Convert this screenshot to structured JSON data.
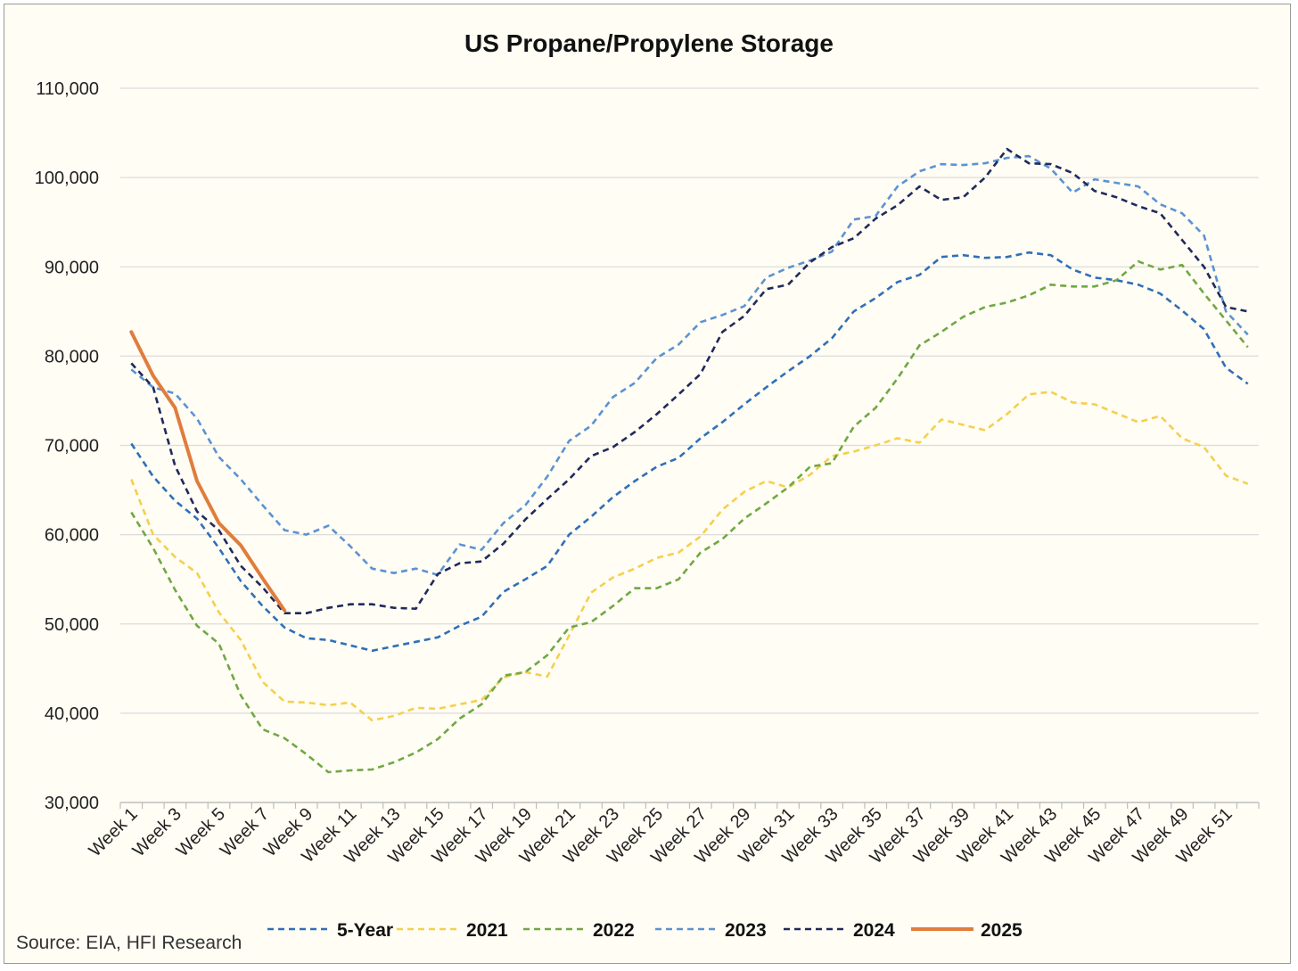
{
  "chart_data": {
    "type": "line",
    "title": "US Propane/Propylene Storage",
    "source": "Source: EIA, HFI Research",
    "ylim": [
      30000,
      110000
    ],
    "y_ticks": [
      "30,000",
      "40,000",
      "50,000",
      "60,000",
      "70,000",
      "80,000",
      "90,000",
      "100,000",
      "110,000"
    ],
    "y_tick_values": [
      30000,
      40000,
      50000,
      60000,
      70000,
      80000,
      90000,
      100000,
      110000
    ],
    "x_categories_count": 52,
    "x_tick_labels": [
      "Week 1",
      "Week 3",
      "Week 5",
      "Week 7",
      "Week 9",
      "Week 11",
      "Week 13",
      "Week 15",
      "Week 17",
      "Week 19",
      "Week 21",
      "Week 23",
      "Week 25",
      "Week 27",
      "Week 29",
      "Week 31",
      "Week 33",
      "Week 35",
      "Week 37",
      "Week 39",
      "Week 41",
      "Week 43",
      "Week 45",
      "Week 47",
      "Week 49",
      "Week 51"
    ],
    "grid": true,
    "legend_position": "bottom",
    "series": [
      {
        "name": "5-Year",
        "color": "#2f6fba",
        "dash": true,
        "values": [
          70200,
          66500,
          63800,
          61800,
          58500,
          54800,
          52000,
          49600,
          48400,
          48200,
          47600,
          47000,
          47500,
          48000,
          48500,
          49800,
          50800,
          53600,
          55000,
          56500,
          60000,
          62000,
          64200,
          66000,
          67600,
          68600,
          70800,
          72600,
          74600,
          76500,
          78300,
          80000,
          82000,
          85000,
          86500,
          88300,
          89100,
          91100,
          91300,
          91000,
          91100,
          91600,
          91300,
          89700,
          88800,
          88500,
          88000,
          87000,
          85100,
          83000,
          78700,
          76900
        ]
      },
      {
        "name": "2021",
        "color": "#f4d04e",
        "dash": true,
        "values": [
          66200,
          60000,
          57500,
          55700,
          51300,
          48200,
          43500,
          41300,
          41200,
          40900,
          41200,
          39200,
          39700,
          40600,
          40500,
          41000,
          41500,
          44000,
          44600,
          44100,
          48700,
          53500,
          55200,
          56200,
          57400,
          58000,
          59800,
          62800,
          64800,
          66000,
          65300,
          66700,
          68800,
          69300,
          70000,
          70800,
          70300,
          72900,
          72300,
          71700,
          73500,
          75700,
          76000,
          74800,
          74600,
          73600,
          72600,
          73300,
          70800,
          69800,
          66600,
          65700
        ]
      },
      {
        "name": "2022",
        "color": "#70a845",
        "dash": true,
        "values": [
          62500,
          58500,
          53800,
          49800,
          47800,
          42000,
          38200,
          37200,
          35400,
          33400,
          33600,
          33700,
          34500,
          35600,
          37100,
          39400,
          41000,
          44200,
          44600,
          46500,
          49600,
          50200,
          52000,
          54000,
          54000,
          55000,
          58000,
          59500,
          61800,
          63500,
          65300,
          67600,
          68000,
          72100,
          74200,
          77500,
          81200,
          82700,
          84400,
          85500,
          86000,
          86800,
          88000,
          87800,
          87800,
          88500,
          90600,
          89700,
          90200,
          87000,
          84000,
          81000
        ]
      },
      {
        "name": "2023",
        "color": "#5b93d3",
        "dash": true,
        "values": [
          78500,
          76500,
          75800,
          73000,
          68700,
          66200,
          63300,
          60500,
          60000,
          61000,
          58700,
          56200,
          55700,
          56200,
          55500,
          58900,
          58300,
          61300,
          63300,
          66500,
          70500,
          72200,
          75400,
          77000,
          79800,
          81300,
          83800,
          84600,
          85600,
          88800,
          89900,
          90700,
          91700,
          95300,
          95700,
          99000,
          100700,
          101500,
          101400,
          101600,
          102200,
          102400,
          101000,
          98300,
          99800,
          99400,
          99000,
          97000,
          96000,
          93500,
          85000,
          82400
        ]
      },
      {
        "name": "2024",
        "color": "#1f2a5c",
        "dash": true,
        "values": [
          79200,
          76500,
          67700,
          62600,
          60500,
          56500,
          54100,
          51200,
          51200,
          51800,
          52200,
          52200,
          51800,
          51700,
          55600,
          56800,
          57000,
          59000,
          61700,
          64000,
          66200,
          68800,
          69800,
          71500,
          73500,
          75700,
          78000,
          82700,
          84500,
          87500,
          88000,
          90500,
          92200,
          93200,
          95400,
          96900,
          99000,
          97500,
          97800,
          100000,
          103200,
          101600,
          101500,
          100500,
          98500,
          97800,
          96800,
          96000,
          93000,
          90000,
          85500,
          85000
        ]
      },
      {
        "name": "2025",
        "color": "#e07d3d",
        "dash": false,
        "values": [
          82700,
          77800,
          74200,
          66000,
          61300,
          58800,
          55100,
          51500
        ]
      }
    ]
  }
}
